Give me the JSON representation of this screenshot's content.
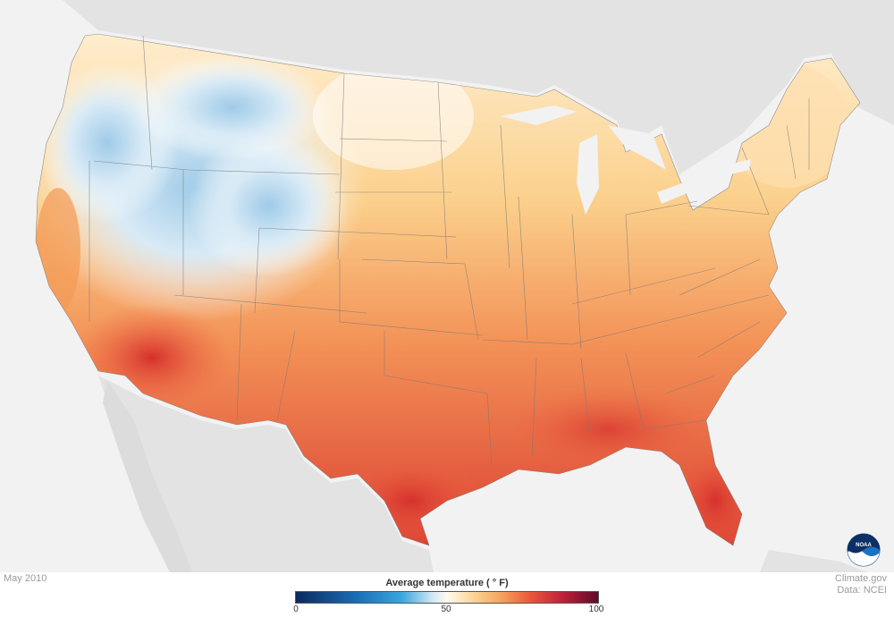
{
  "map": {
    "caption": "May 2010",
    "credit_line1": "Climate.gov",
    "credit_line2": "Data: NCEI",
    "logo_text": "NOAA",
    "background_color": "#f2f2f2",
    "land_color": "#e3e3e3"
  },
  "legend": {
    "title": "Average temperature  ( ° F)",
    "min_label": "0",
    "mid_label": "50",
    "max_label": "100",
    "range": [
      0,
      100
    ],
    "color_stops": [
      {
        "value": 0,
        "color": "#0b2a5e"
      },
      {
        "value": 20,
        "color": "#1a6db5"
      },
      {
        "value": 35,
        "color": "#3aa6dc"
      },
      {
        "value": 45,
        "color": "#cfe6f3"
      },
      {
        "value": 50,
        "color": "#fffaf0"
      },
      {
        "value": 58,
        "color": "#fbd99a"
      },
      {
        "value": 68,
        "color": "#f6a25e"
      },
      {
        "value": 78,
        "color": "#e8553a"
      },
      {
        "value": 88,
        "color": "#c0223a"
      },
      {
        "value": 100,
        "color": "#5e0a2a"
      }
    ]
  }
}
